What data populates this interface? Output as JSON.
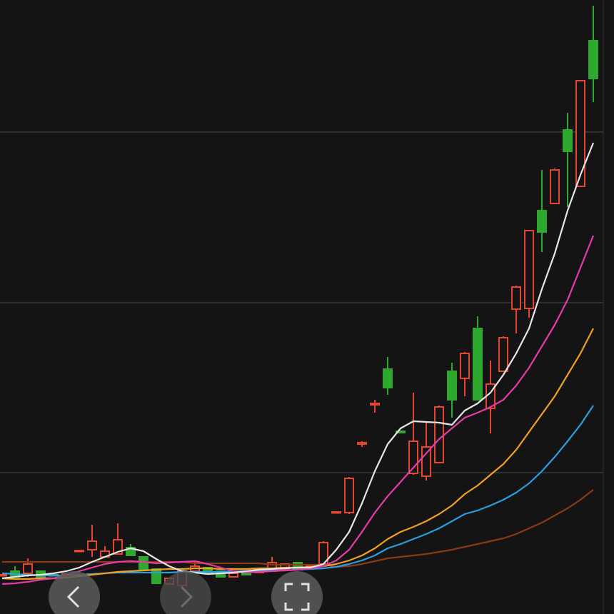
{
  "chart_data": {
    "type": "candlestick",
    "open": [
      5.4,
      6.0,
      5.7,
      6.0,
      5.5,
      5.5,
      8.8,
      9.0,
      8.0,
      8.4,
      9.3,
      8.0,
      6.3,
      4.2,
      4.0,
      6.0,
      6.5,
      6.0,
      5.2,
      6.0,
      5.8,
      6.0,
      6.3,
      7.2,
      6.4,
      7.0,
      14.2,
      14.2,
      23.8,
      29.3,
      34.3,
      25.6,
      19.7,
      19.3,
      21.2,
      34.0,
      33.0,
      40.0,
      28.8,
      34.0,
      42.7,
      42.8,
      56.5,
      57.5,
      67.8,
      59.9,
      80.3
    ],
    "high": [
      5.6,
      6.7,
      7.8,
      6.0,
      5.7,
      5.6,
      8.9,
      12.5,
      9.5,
      12.7,
      9.8,
      8.0,
      6.3,
      5.0,
      6.0,
      7.5,
      6.5,
      6.0,
      5.7,
      6.0,
      6.2,
      8.0,
      7.0,
      7.2,
      6.8,
      10.2,
      14.3,
      19.2,
      24.2,
      30.0,
      36.0,
      25.6,
      31.0,
      27.0,
      29.2,
      35.2,
      36.7,
      41.7,
      35.5,
      38.9,
      46.0,
      53.7,
      62.2,
      62.4,
      70.2,
      74.7,
      85.2
    ],
    "low": [
      5.4,
      5.2,
      5.2,
      5.0,
      5.3,
      5.4,
      8.8,
      8.0,
      8.0,
      8.4,
      8.2,
      6.2,
      4.3,
      4.2,
      4.0,
      6.0,
      5.8,
      5.2,
      5.2,
      5.5,
      5.8,
      6.0,
      6.3,
      6.2,
      6.4,
      7.0,
      14.2,
      14.0,
      23.4,
      28.2,
      30.7,
      25.4,
      19.5,
      18.7,
      21.2,
      27.5,
      30.5,
      30.0,
      25.3,
      34.0,
      39.3,
      41.5,
      50.7,
      57.5,
      57.0,
      59.9,
      71.7
    ],
    "close": [
      5.5,
      5.2,
      7.0,
      5.0,
      5.4,
      5.6,
      8.9,
      10.2,
      8.8,
      10.4,
      8.2,
      6.2,
      4.3,
      5.0,
      6.0,
      6.7,
      5.8,
      5.2,
      5.7,
      5.5,
      6.2,
      7.2,
      7.0,
      6.2,
      6.8,
      10.0,
      14.3,
      19.0,
      24.0,
      29.5,
      31.7,
      25.4,
      24.2,
      23.4,
      29.0,
      30.0,
      36.5,
      30.0,
      32.2,
      38.7,
      45.8,
      53.7,
      53.5,
      62.2,
      64.8,
      74.7,
      75.0
    ],
    "up_color": "#e8452f",
    "down_color": "#2ea82e",
    "series": [
      {
        "color": "#8a3a12",
        "values": [
          7.3,
          7.3,
          7.3,
          7.3,
          7.3,
          7.3,
          7.3,
          7.3,
          7.3,
          7.3,
          7.3,
          7.3,
          7.3,
          7.3,
          7.3,
          7.1,
          7.1,
          7.1,
          7.1,
          7.1,
          7.1,
          6.9,
          6.9,
          6.9,
          6.9,
          6.9,
          6.6,
          6.7,
          7.0,
          7.4,
          7.8,
          8.0,
          8.2,
          8.4,
          8.7,
          9.0,
          9.4,
          9.8,
          10.2,
          10.6,
          11.2,
          12.0,
          12.8,
          13.8,
          14.8,
          16.0,
          17.4
        ]
      },
      {
        "color": "#2a9fe0",
        "values": [
          5.7,
          5.6,
          5.5,
          5.4,
          5.4,
          5.4,
          5.5,
          5.6,
          5.7,
          5.8,
          5.8,
          5.8,
          5.8,
          5.8,
          5.9,
          5.9,
          5.9,
          5.9,
          6.0,
          6.0,
          6.0,
          6.1,
          6.1,
          6.2,
          6.3,
          6.4,
          6.6,
          7.0,
          7.5,
          8.2,
          9.2,
          9.8,
          10.5,
          11.2,
          12.0,
          13.0,
          14.0,
          14.5,
          15.2,
          16.0,
          17.0,
          18.3,
          20.0,
          22.0,
          24.2,
          26.5,
          29.2
        ]
      },
      {
        "color": "#f0a020",
        "values": [
          5.0,
          4.9,
          4.9,
          5.0,
          5.0,
          5.1,
          5.3,
          5.5,
          5.7,
          5.9,
          6.0,
          6.1,
          6.2,
          6.3,
          6.3,
          6.4,
          6.4,
          6.3,
          6.3,
          6.3,
          6.4,
          6.4,
          6.5,
          6.5,
          6.6,
          6.7,
          7.0,
          7.5,
          8.2,
          9.2,
          10.5,
          11.5,
          12.2,
          13.0,
          14.0,
          15.2,
          16.8,
          18.0,
          19.5,
          21.0,
          23.0,
          25.5,
          28.0,
          30.5,
          33.5,
          36.5,
          40.0
        ]
      },
      {
        "color": "#e83aa8",
        "values": [
          4.2,
          4.3,
          4.5,
          4.8,
          5.0,
          5.4,
          6.0,
          6.5,
          7.0,
          7.3,
          7.4,
          7.3,
          7.1,
          7.2,
          7.3,
          7.4,
          7.0,
          6.5,
          6.0,
          5.8,
          5.9,
          6.0,
          6.1,
          6.2,
          6.4,
          6.7,
          7.5,
          9.0,
          11.5,
          14.2,
          16.5,
          18.5,
          20.5,
          22.5,
          24.5,
          26.0,
          27.5,
          28.2,
          29.0,
          30.0,
          32.0,
          34.5,
          37.5,
          40.5,
          44.0,
          48.5,
          53.0
        ]
      },
      {
        "color": "#e6e6e6",
        "values": [
          5.0,
          5.2,
          5.4,
          5.5,
          5.7,
          6.0,
          6.5,
          7.3,
          8.0,
          8.7,
          9.2,
          8.8,
          7.7,
          6.7,
          6.0,
          5.8,
          5.6,
          5.7,
          5.8,
          6.0,
          6.2,
          6.3,
          6.4,
          6.5,
          6.5,
          7.0,
          9.0,
          11.5,
          15.5,
          20.0,
          23.8,
          26.0,
          27.0,
          26.9,
          26.8,
          26.5,
          28.5,
          29.5,
          31.0,
          33.5,
          36.5,
          40.0,
          45.5,
          50.5,
          56.5,
          61.5,
          66.0
        ]
      }
    ],
    "ylim": [
      0,
      86
    ],
    "yticks": [
      19.8,
      43.6,
      67.5
    ],
    "grid": true,
    "grid_color": "#3a3a3a"
  }
}
